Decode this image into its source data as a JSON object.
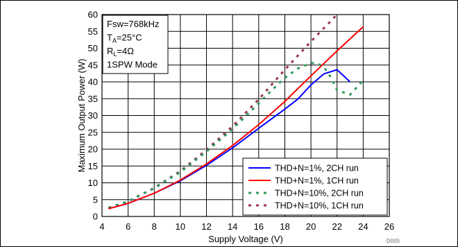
{
  "chart_data": {
    "type": "line",
    "title": "",
    "xlabel": "Supply Voltage (V)",
    "ylabel": "Maximum Output Power (W)",
    "xlim": [
      4,
      26
    ],
    "ylim": [
      0,
      60
    ],
    "xticks": [
      4,
      6,
      8,
      10,
      12,
      14,
      16,
      18,
      20,
      22,
      24,
      26
    ],
    "yticks": [
      0,
      5,
      10,
      15,
      20,
      25,
      30,
      35,
      40,
      45,
      50,
      55,
      60
    ],
    "grid": true,
    "legend_position": "bottom-right",
    "conditions": [
      {
        "main": "Fsw=768kHz",
        "sub": ""
      },
      {
        "main": "T",
        "sub": "A",
        "rest": "=25°C"
      },
      {
        "main": "R",
        "sub": "L",
        "rest": "=4Ω"
      },
      {
        "main": "1SPW Mode",
        "sub": ""
      }
    ],
    "series": [
      {
        "name": "THD+N=1%, 2CH run",
        "color": "#0000ff",
        "style": "solid",
        "x": [
          4.5,
          6,
          8,
          10,
          12,
          14,
          16,
          18,
          19,
          20,
          21,
          22,
          23
        ],
        "y": [
          2.3,
          3.9,
          6.9,
          10.6,
          15.2,
          20.4,
          26.2,
          31.9,
          34.9,
          39.1,
          42.4,
          43.6,
          40.0
        ]
      },
      {
        "name": "THD+N=1%, 1CH run",
        "color": "#ff0000",
        "style": "solid",
        "x": [
          4.5,
          6,
          8,
          10,
          12,
          14,
          16,
          18,
          20,
          22,
          24
        ],
        "y": [
          2.3,
          3.9,
          6.9,
          10.8,
          15.6,
          21.1,
          27.3,
          34.2,
          41.8,
          49.2,
          56.4
        ]
      },
      {
        "name": "THD+N=10%, 2CH run",
        "color": "#2e9a5c",
        "style": "dashed",
        "x": [
          4.5,
          6,
          8,
          10,
          12,
          14,
          16,
          17,
          18,
          19,
          20,
          20.5,
          21,
          21.5,
          22,
          23,
          24
        ],
        "y": [
          2.6,
          4.5,
          8.4,
          13.2,
          19.3,
          26.0,
          33.6,
          37.5,
          41.2,
          44.0,
          45.6,
          45.5,
          44.4,
          41.5,
          37.5,
          36.2,
          40.5
        ]
      },
      {
        "name": "THD+N=10%, 1CH run",
        "color": "#993355",
        "style": "dashed",
        "x": [
          4.5,
          6,
          8,
          10,
          12,
          14,
          16,
          18,
          20,
          22
        ],
        "y": [
          2.6,
          4.5,
          8.5,
          13.5,
          19.8,
          26.8,
          34.8,
          43.6,
          52.0,
          60.0
        ]
      }
    ],
    "watermark": "D005"
  }
}
